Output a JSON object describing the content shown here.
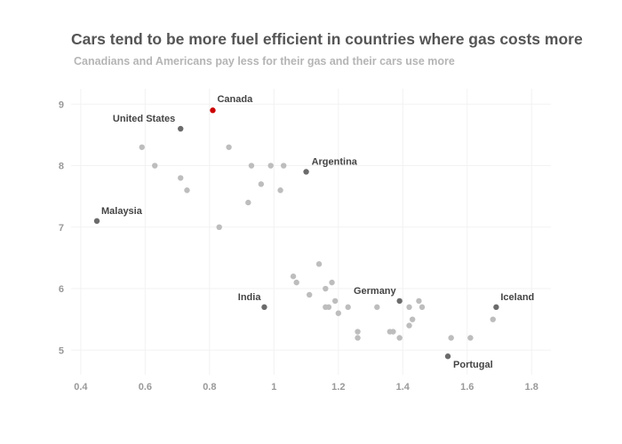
{
  "title": "Cars tend to be more fuel efficient in countries where gas costs more",
  "subtitle": "Canadians and Americans pay less for their gas and their cars use more",
  "chart_data": {
    "type": "scatter",
    "title": "Cars tend to be more fuel efficient in countries where gas costs more",
    "subtitle": "Canadians and Americans pay less for their gas and their cars use more",
    "xlabel": "",
    "ylabel": "",
    "xlim": [
      0.37,
      1.86
    ],
    "ylim": [
      4.6,
      9.25
    ],
    "xticks": [
      0.4,
      0.6,
      0.8,
      1,
      1.2,
      1.4,
      1.6,
      1.8
    ],
    "xtick_labels": [
      "0.4",
      "0.6",
      "0.8",
      "1",
      "1.2",
      "1.4",
      "1.6",
      "1.8"
    ],
    "yticks": [
      5,
      6,
      7,
      8,
      9
    ],
    "ytick_labels": [
      "5",
      "6",
      "7",
      "8",
      "9"
    ],
    "grid": true,
    "colors": {
      "highlight": "#cc0000",
      "labeled": "#6b6b6b",
      "other": "#bdbdbd"
    },
    "points": [
      {
        "x": 0.81,
        "y": 8.9,
        "label": "Canada",
        "group": "highlight"
      },
      {
        "x": 0.71,
        "y": 8.6,
        "label": "United States",
        "group": "labeled"
      },
      {
        "x": 1.1,
        "y": 7.9,
        "label": "Argentina",
        "group": "labeled"
      },
      {
        "x": 0.45,
        "y": 7.1,
        "label": "Malaysia",
        "group": "labeled"
      },
      {
        "x": 0.97,
        "y": 5.7,
        "label": "India",
        "group": "labeled"
      },
      {
        "x": 1.39,
        "y": 5.8,
        "label": "Germany",
        "group": "labeled"
      },
      {
        "x": 1.69,
        "y": 5.7,
        "label": "Iceland",
        "group": "labeled"
      },
      {
        "x": 1.54,
        "y": 4.9,
        "label": "Portugal",
        "group": "labeled"
      },
      {
        "x": 0.59,
        "y": 8.3,
        "group": "other"
      },
      {
        "x": 0.63,
        "y": 8.0,
        "group": "other"
      },
      {
        "x": 0.71,
        "y": 7.8,
        "group": "other"
      },
      {
        "x": 0.73,
        "y": 7.6,
        "group": "other"
      },
      {
        "x": 0.83,
        "y": 7.0,
        "group": "other"
      },
      {
        "x": 0.86,
        "y": 8.3,
        "group": "other"
      },
      {
        "x": 0.92,
        "y": 7.4,
        "group": "other"
      },
      {
        "x": 0.93,
        "y": 8.0,
        "group": "other"
      },
      {
        "x": 0.96,
        "y": 7.7,
        "group": "other"
      },
      {
        "x": 0.99,
        "y": 8.0,
        "group": "other"
      },
      {
        "x": 1.02,
        "y": 7.6,
        "group": "other"
      },
      {
        "x": 1.03,
        "y": 8.0,
        "group": "other"
      },
      {
        "x": 1.06,
        "y": 6.2,
        "group": "other"
      },
      {
        "x": 1.07,
        "y": 6.1,
        "group": "other"
      },
      {
        "x": 1.11,
        "y": 5.9,
        "group": "other"
      },
      {
        "x": 1.14,
        "y": 6.4,
        "group": "other"
      },
      {
        "x": 1.16,
        "y": 6.0,
        "group": "other"
      },
      {
        "x": 1.16,
        "y": 5.7,
        "group": "other"
      },
      {
        "x": 1.17,
        "y": 5.7,
        "group": "other"
      },
      {
        "x": 1.18,
        "y": 6.1,
        "group": "other"
      },
      {
        "x": 1.19,
        "y": 5.8,
        "group": "other"
      },
      {
        "x": 1.2,
        "y": 5.6,
        "group": "other"
      },
      {
        "x": 1.23,
        "y": 5.7,
        "group": "other"
      },
      {
        "x": 1.26,
        "y": 5.3,
        "group": "other"
      },
      {
        "x": 1.26,
        "y": 5.2,
        "group": "other"
      },
      {
        "x": 1.32,
        "y": 5.7,
        "group": "other"
      },
      {
        "x": 1.36,
        "y": 5.3,
        "group": "other"
      },
      {
        "x": 1.37,
        "y": 5.3,
        "group": "other"
      },
      {
        "x": 1.39,
        "y": 5.2,
        "group": "other"
      },
      {
        "x": 1.42,
        "y": 5.7,
        "group": "other"
      },
      {
        "x": 1.42,
        "y": 5.4,
        "group": "other"
      },
      {
        "x": 1.43,
        "y": 5.5,
        "group": "other"
      },
      {
        "x": 1.45,
        "y": 5.8,
        "group": "other"
      },
      {
        "x": 1.46,
        "y": 5.7,
        "group": "other"
      },
      {
        "x": 1.55,
        "y": 5.2,
        "group": "other"
      },
      {
        "x": 1.61,
        "y": 5.2,
        "group": "other"
      },
      {
        "x": 1.68,
        "y": 5.5,
        "group": "other"
      }
    ]
  }
}
